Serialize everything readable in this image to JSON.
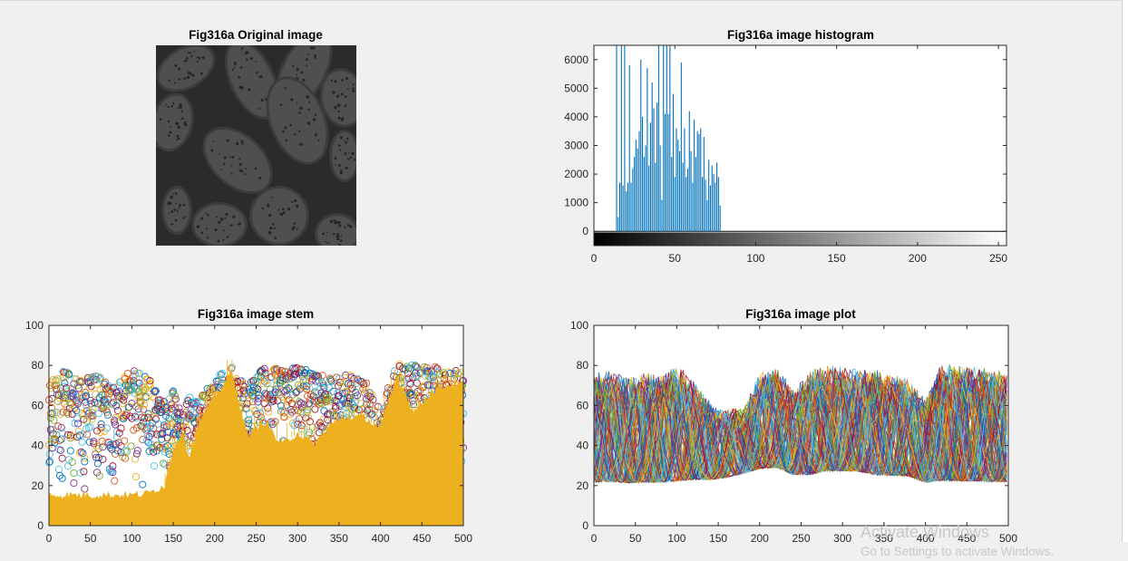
{
  "watermark": {
    "line1": "Activate Windows",
    "line2": "Go to Settings to activate Windows."
  },
  "colors": {
    "histogram_bar": "#0072bd",
    "stem_fill": "#edb120",
    "series_palette": [
      "#0072bd",
      "#d95319",
      "#edb120",
      "#7e2f8e",
      "#77ac30",
      "#4dbeee",
      "#a2142f"
    ]
  },
  "chart_data": [
    {
      "type": "image",
      "title": "Fig316a Original image",
      "colormap": "gray",
      "description_values": "dark low-contrast grayscale micrograph, intensities approx 14-80 of 255"
    },
    {
      "type": "bar",
      "title": "Fig316a image histogram",
      "xlim": [
        0,
        255
      ],
      "ylim": [
        -500,
        6500
      ],
      "xticks": [
        0,
        50,
        100,
        150,
        200,
        250
      ],
      "yticks": [
        0,
        1000,
        2000,
        3000,
        4000,
        5000,
        6000
      ],
      "colorbar": "gray",
      "x": [
        14,
        15,
        16,
        17,
        18,
        19,
        20,
        21,
        22,
        23,
        24,
        25,
        26,
        27,
        28,
        29,
        30,
        31,
        32,
        33,
        34,
        35,
        36,
        37,
        38,
        39,
        40,
        41,
        42,
        43,
        44,
        45,
        46,
        47,
        48,
        49,
        50,
        51,
        52,
        53,
        54,
        55,
        56,
        57,
        58,
        59,
        60,
        61,
        62,
        63,
        64,
        65,
        66,
        67,
        68,
        69,
        70,
        71,
        72,
        73,
        74,
        75,
        76,
        77,
        78
      ],
      "values": [
        6500,
        500,
        1700,
        6500,
        1600,
        6500,
        1400,
        1700,
        5800,
        1700,
        2200,
        2600,
        3200,
        2900,
        3500,
        6000,
        4000,
        2600,
        3000,
        5700,
        2300,
        3800,
        5200,
        4300,
        2400,
        4500,
        6500,
        3000,
        1100,
        6500,
        4100,
        6500,
        4100,
        6500,
        2600,
        4800,
        1900,
        3600,
        3200,
        2800,
        5900,
        2400,
        3600,
        1900,
        2200,
        4200,
        2800,
        1700,
        3900,
        2600,
        3500,
        3400,
        3600,
        1900,
        3300,
        1800,
        1100,
        2500,
        1600,
        2300,
        2000,
        1700,
        2400,
        1900,
        900
      ]
    },
    {
      "type": "stem",
      "title": "Fig316a image stem",
      "xlim": [
        0,
        500
      ],
      "ylim": [
        0,
        100
      ],
      "xticks": [
        0,
        50,
        100,
        150,
        200,
        250,
        300,
        350,
        400,
        450,
        500
      ],
      "yticks": [
        0,
        20,
        40,
        60,
        80,
        100
      ],
      "x": [
        0,
        20,
        40,
        60,
        80,
        100,
        120,
        140,
        150,
        160,
        170,
        180,
        200,
        220,
        240,
        260,
        280,
        300,
        320,
        340,
        360,
        380,
        400,
        420,
        440,
        460,
        480,
        500
      ],
      "max_values": [
        72,
        78,
        74,
        76,
        70,
        78,
        74,
        62,
        68,
        56,
        66,
        62,
        74,
        80,
        70,
        80,
        78,
        80,
        76,
        74,
        76,
        74,
        58,
        82,
        80,
        80,
        78,
        78
      ],
      "min_values": [
        14,
        14,
        14,
        14,
        14,
        14,
        16,
        18,
        20,
        22,
        18,
        28,
        20,
        20,
        20,
        20,
        18,
        18,
        20,
        18,
        18,
        20,
        18,
        16,
        16,
        16,
        16,
        16
      ],
      "fill_top": [
        15,
        15,
        15,
        15,
        15,
        15,
        16,
        20,
        38,
        46,
        34,
        50,
        64,
        76,
        44,
        52,
        40,
        46,
        40,
        50,
        54,
        54,
        48,
        74,
        56,
        66,
        70,
        70
      ]
    },
    {
      "type": "line",
      "title": "Fig316a image plot",
      "xlim": [
        0,
        500
      ],
      "ylim": [
        0,
        100
      ],
      "xticks": [
        0,
        50,
        100,
        150,
        200,
        250,
        300,
        350,
        400,
        450,
        500
      ],
      "yticks": [
        0,
        20,
        40,
        60,
        80,
        100
      ],
      "x": [
        0,
        20,
        40,
        60,
        80,
        100,
        120,
        140,
        160,
        180,
        200,
        220,
        240,
        260,
        280,
        300,
        320,
        340,
        360,
        380,
        400,
        420,
        440,
        460,
        480,
        500
      ],
      "max_values": [
        76,
        78,
        74,
        76,
        76,
        80,
        74,
        62,
        58,
        60,
        76,
        80,
        68,
        78,
        80,
        80,
        78,
        78,
        76,
        74,
        64,
        82,
        80,
        80,
        78,
        78
      ],
      "min_values": [
        12,
        12,
        12,
        12,
        12,
        12,
        14,
        16,
        18,
        20,
        20,
        20,
        18,
        16,
        18,
        18,
        18,
        16,
        16,
        16,
        14,
        12,
        12,
        12,
        12,
        12
      ]
    }
  ]
}
